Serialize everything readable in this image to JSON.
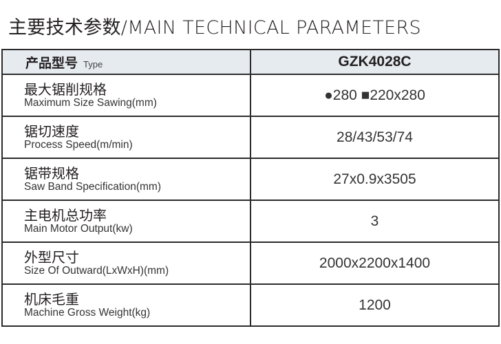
{
  "title": "主要技术参数/MAIN TECHNICAL PARAMETERS",
  "header": {
    "label_cn": "产品型号",
    "label_en": "Type",
    "model": "GZK4028C"
  },
  "rows": [
    {
      "cn": "最大锯削规格",
      "en": "Maximum Size Sawing(mm)",
      "value": "●280 ■220x280"
    },
    {
      "cn": "锯切速度",
      "en": "Process Speed(m/min)",
      "value": "28/43/53/74"
    },
    {
      "cn": "锯带规格",
      "en": "Saw Band Specification(mm)",
      "value": "27x0.9x3505"
    },
    {
      "cn": "主电机总功率",
      "en": "Main Motor Output(kw)",
      "value": "3"
    },
    {
      "cn": "外型尺寸",
      "en": "Size Of Outward(LxWxH)(mm)",
      "value": "2000x2200x1400"
    },
    {
      "cn": "机床毛重",
      "en": "Machine Gross Weight(kg)",
      "value": "1200"
    }
  ]
}
